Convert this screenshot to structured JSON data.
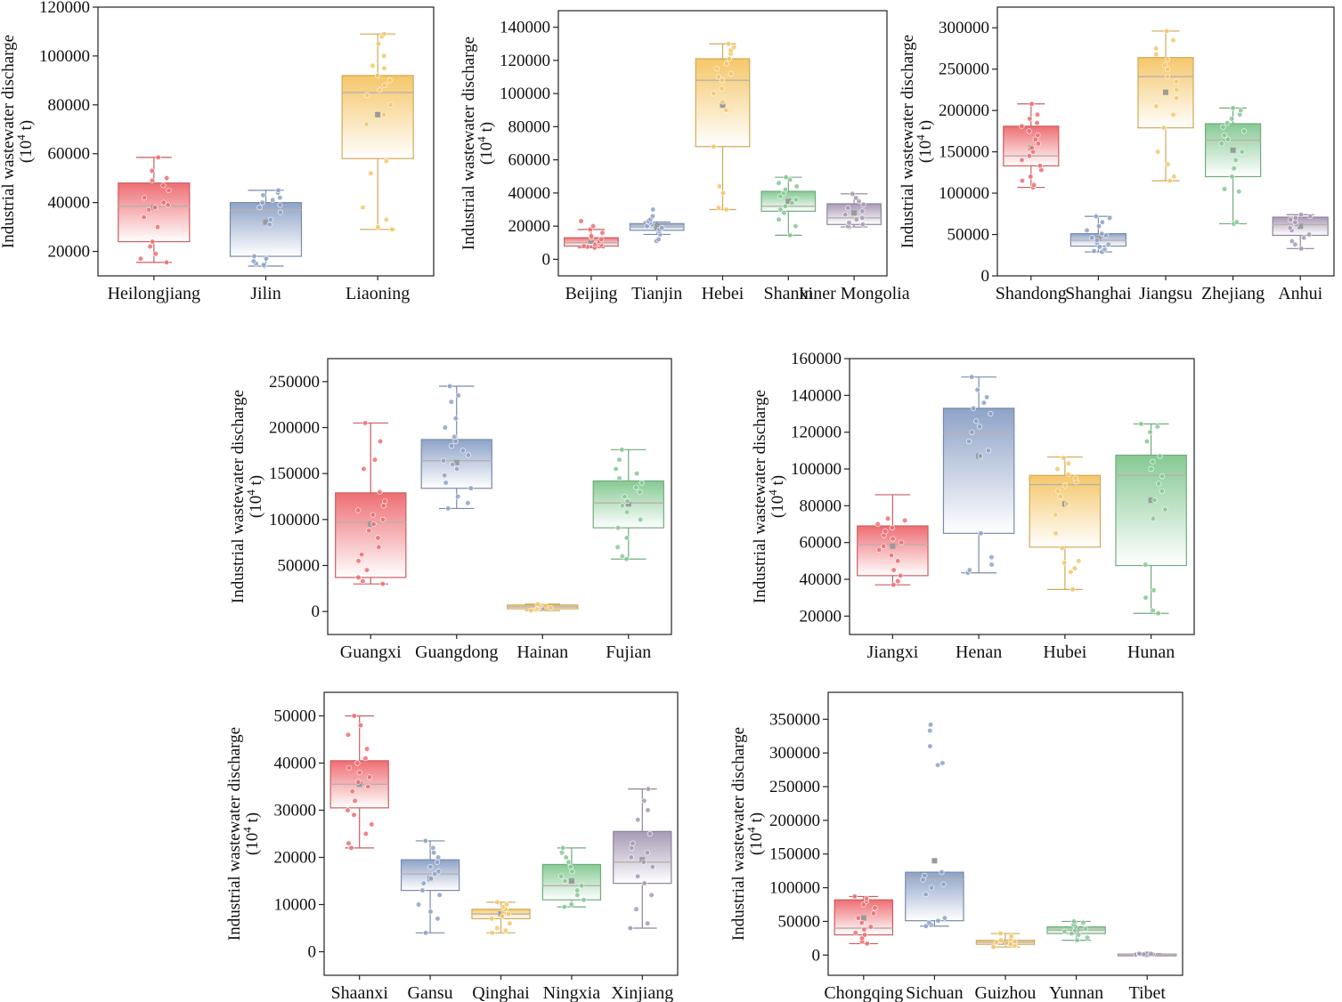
{
  "ylabel_line1": "Industrial wastewater discharge",
  "ylabel_line2_base": "(10",
  "ylabel_line2_sup": "4",
  "ylabel_line2_tail": " t)",
  "palette": [
    "#ee6e73",
    "#8ea3c8",
    "#f5c76a",
    "#86c994",
    "#a89ab5"
  ],
  "chart_data": [
    {
      "type": "box",
      "ylim": [
        10000,
        120000
      ],
      "yticks": [
        20000,
        40000,
        60000,
        80000,
        100000,
        120000
      ],
      "categories": [
        "Heilongjiang",
        "Jilin",
        "Liaoning"
      ],
      "boxes": [
        {
          "min": 15500,
          "q1": 24000,
          "median": 38500,
          "q3": 48000,
          "max": 58500,
          "mean": 38000,
          "points": [
            15500,
            17000,
            19000,
            22000,
            24000,
            30000,
            34000,
            37000,
            38000,
            39000,
            40000,
            42000,
            45000,
            47000,
            49000,
            50000,
            53000,
            58500
          ]
        },
        {
          "min": 14000,
          "q1": 18000,
          "median": 37000,
          "q3": 40000,
          "max": 45000,
          "mean": 32000,
          "points": [
            14000,
            14500,
            15000,
            16000,
            17000,
            18000,
            31000,
            33000,
            36000,
            38000,
            39000,
            40000,
            41000,
            42000,
            43000,
            44000,
            45000
          ]
        },
        {
          "min": 29000,
          "q1": 58000,
          "median": 85000,
          "q3": 92000,
          "max": 109000,
          "mean": 76000,
          "points": [
            29000,
            30000,
            33000,
            38000,
            52000,
            57000,
            72000,
            76000,
            80000,
            84000,
            86000,
            88000,
            90000,
            92000,
            95000,
            96000,
            100000,
            105000,
            108000,
            109000
          ]
        }
      ]
    },
    {
      "type": "box",
      "ylim": [
        -10000,
        150000
      ],
      "yticks": [
        0,
        20000,
        40000,
        60000,
        80000,
        100000,
        120000,
        140000
      ],
      "categories": [
        "Beijing",
        "Tianjin",
        "Hebei",
        "Shanxi",
        "Inner Mongolia"
      ],
      "boxes": [
        {
          "min": 7000,
          "q1": 8000,
          "median": 10000,
          "q3": 13000,
          "max": 18000,
          "mean": 11000,
          "points": [
            7000,
            7500,
            8000,
            8500,
            9000,
            10000,
            11000,
            12000,
            13000,
            14000,
            16000,
            18000,
            20000,
            23000
          ]
        },
        {
          "min": 15000,
          "q1": 17500,
          "median": 19500,
          "q3": 21500,
          "max": 22500,
          "mean": 19500,
          "points": [
            11000,
            12000,
            15000,
            17000,
            18000,
            19000,
            20000,
            21000,
            22000,
            23000,
            24000,
            26000,
            30000
          ]
        },
        {
          "min": 30000,
          "q1": 68000,
          "median": 108000,
          "q3": 121000,
          "max": 130000,
          "mean": 93000,
          "points": [
            30000,
            31000,
            40000,
            44000,
            68000,
            90000,
            95000,
            100000,
            103000,
            108000,
            110000,
            112000,
            115000,
            118000,
            121000,
            124000,
            126000,
            128000,
            130000
          ]
        },
        {
          "min": 14500,
          "q1": 29000,
          "median": 32000,
          "q3": 41000,
          "max": 49500,
          "mean": 35000,
          "points": [
            14500,
            20000,
            24000,
            28000,
            30000,
            32000,
            34000,
            36000,
            38000,
            40000,
            42000,
            44000,
            46000,
            48000,
            49500
          ]
        },
        {
          "min": 19500,
          "q1": 21000,
          "median": 25000,
          "q3": 33500,
          "max": 39500,
          "mean": 28000,
          "points": [
            19500,
            20000,
            21000,
            22000,
            24000,
            25000,
            27000,
            29000,
            31000,
            33000,
            35000,
            37000,
            39500
          ]
        }
      ]
    },
    {
      "type": "box",
      "ylim": [
        0,
        325000
      ],
      "yticks": [
        0,
        50000,
        100000,
        150000,
        200000,
        250000,
        300000
      ],
      "categories": [
        "Shandong",
        "Shanghai",
        "Jiangsu",
        "Zhejiang",
        "Anhui"
      ],
      "boxes": [
        {
          "min": 107000,
          "q1": 133000,
          "median": 145000,
          "q3": 181000,
          "max": 208000,
          "mean": 155000,
          "points": [
            107000,
            110000,
            115000,
            120000,
            128000,
            133000,
            140000,
            145000,
            150000,
            155000,
            160000,
            165000,
            170000,
            175000,
            181000,
            185000,
            190000,
            195000,
            208000
          ]
        },
        {
          "min": 29000,
          "q1": 36000,
          "median": 43000,
          "q3": 51000,
          "max": 72000,
          "mean": 45000,
          "points": [
            29000,
            30000,
            32000,
            35000,
            38000,
            40000,
            43000,
            46000,
            49000,
            51000,
            55000,
            60000,
            65000,
            70000,
            72000
          ]
        },
        {
          "min": 115000,
          "q1": 179000,
          "median": 241000,
          "q3": 264000,
          "max": 296000,
          "mean": 222000,
          "points": [
            115000,
            120000,
            135000,
            150000,
            179000,
            195000,
            205000,
            215000,
            225000,
            235000,
            241000,
            250000,
            255000,
            262000,
            268000,
            275000,
            285000,
            296000
          ]
        },
        {
          "min": 63000,
          "q1": 120000,
          "median": 164000,
          "q3": 184000,
          "max": 203000,
          "mean": 152000,
          "points": [
            63000,
            65000,
            102000,
            105000,
            120000,
            130000,
            140000,
            150000,
            160000,
            165000,
            170000,
            175000,
            180000,
            185000,
            190000,
            195000,
            200000,
            203000
          ]
        },
        {
          "min": 33000,
          "q1": 49000,
          "median": 62000,
          "q3": 71000,
          "max": 74000,
          "mean": 60000,
          "points": [
            33000,
            38000,
            42000,
            46000,
            50000,
            55000,
            58000,
            62000,
            65000,
            68000,
            70000,
            72000,
            74000
          ]
        }
      ]
    },
    {
      "type": "box",
      "ylim": [
        -25000,
        275000
      ],
      "yticks": [
        0,
        50000,
        100000,
        150000,
        200000,
        250000
      ],
      "categories": [
        "Guangxi",
        "Guangdong",
        "Hainan",
        "Fujian"
      ],
      "boxes": [
        {
          "min": 30000,
          "q1": 37000,
          "median": 97000,
          "q3": 129000,
          "max": 205000,
          "mean": 95000,
          "points": [
            30000,
            33000,
            37000,
            45000,
            55000,
            62000,
            70000,
            80000,
            88000,
            95000,
            100000,
            105000,
            110000,
            115000,
            120000,
            130000,
            155000,
            165000,
            185000,
            205000
          ]
        },
        {
          "min": 112000,
          "q1": 134000,
          "median": 164000,
          "q3": 187000,
          "max": 245000,
          "mean": 162000,
          "points": [
            112000,
            118000,
            125000,
            134000,
            140000,
            148000,
            155000,
            160000,
            164000,
            170000,
            175000,
            180000,
            185000,
            190000,
            200000,
            210000,
            228000,
            235000,
            245000
          ]
        },
        {
          "min": 1000,
          "q1": 3000,
          "median": 5000,
          "q3": 7000,
          "max": 8000,
          "mean": 5000,
          "points": [
            1000,
            2000,
            3000,
            4000,
            5000,
            6000,
            7000,
            8000
          ]
        },
        {
          "min": 57000,
          "q1": 91000,
          "median": 118000,
          "q3": 142000,
          "max": 176000,
          "mean": 117000,
          "points": [
            57000,
            60000,
            70000,
            80000,
            91000,
            100000,
            108000,
            115000,
            120000,
            125000,
            130000,
            135000,
            140000,
            145000,
            150000,
            155000,
            165000,
            176000
          ]
        }
      ]
    },
    {
      "type": "box",
      "ylim": [
        10000,
        160000
      ],
      "yticks": [
        20000,
        40000,
        60000,
        80000,
        100000,
        120000,
        140000,
        160000
      ],
      "categories": [
        "Jiangxi",
        "Henan",
        "Hubei",
        "Hunan"
      ],
      "boxes": [
        {
          "min": 37000,
          "q1": 42000,
          "median": 59000,
          "q3": 69000,
          "max": 86000,
          "mean": 58000,
          "points": [
            37000,
            39000,
            42000,
            45000,
            50000,
            53000,
            56000,
            58000,
            60000,
            62000,
            64000,
            66000,
            68000,
            70000,
            72000,
            73000
          ]
        },
        {
          "min": 43500,
          "q1": 65000,
          "median": 120000,
          "q3": 133000,
          "max": 150000,
          "mean": 107000,
          "points": [
            43500,
            45000,
            48000,
            52000,
            65000,
            107000,
            110000,
            115000,
            120000,
            123000,
            126000,
            130000,
            133000,
            136000,
            139000,
            143000,
            150000
          ]
        },
        {
          "min": 34500,
          "q1": 57500,
          "median": 91500,
          "q3": 96500,
          "max": 106500,
          "mean": 81000,
          "points": [
            34500,
            44000,
            46000,
            49000,
            50000,
            57000,
            65000,
            75000,
            81000,
            85000,
            88000,
            91000,
            93000,
            95000,
            97000,
            100000,
            103000,
            106000
          ]
        },
        {
          "min": 21500,
          "q1": 47500,
          "median": 96500,
          "q3": 107500,
          "max": 124500,
          "mean": 83000,
          "points": [
            21500,
            23000,
            30000,
            34000,
            48000,
            73000,
            78000,
            83000,
            88000,
            92000,
            96000,
            100000,
            104000,
            107000,
            115000,
            120000,
            123000,
            124500
          ]
        }
      ]
    },
    {
      "type": "box",
      "ylim": [
        -5000,
        55000
      ],
      "yticks": [
        0,
        10000,
        20000,
        30000,
        40000,
        50000
      ],
      "categories": [
        "Shaanxi",
        "Gansu",
        "Qinghai",
        "Ningxia",
        "Xinjiang"
      ],
      "boxes": [
        {
          "min": 22000,
          "q1": 30500,
          "median": 35500,
          "q3": 40500,
          "max": 50000,
          "mean": 35500,
          "points": [
            22000,
            23000,
            25000,
            27000,
            29000,
            30000,
            32000,
            34000,
            35000,
            36000,
            37000,
            38000,
            39000,
            40000,
            41000,
            43000,
            46000,
            48000,
            50000
          ]
        },
        {
          "min": 4000,
          "q1": 13000,
          "median": 16500,
          "q3": 19500,
          "max": 23500,
          "mean": 15500,
          "points": [
            4000,
            7000,
            8500,
            10000,
            12000,
            13000,
            14500,
            15500,
            16500,
            17000,
            18000,
            19000,
            20000,
            21000,
            22000,
            23500
          ]
        },
        {
          "min": 4000,
          "q1": 7000,
          "median": 8000,
          "q3": 9000,
          "max": 10500,
          "mean": 8000,
          "points": [
            4000,
            4500,
            5000,
            6000,
            7000,
            7500,
            8000,
            8500,
            9000,
            9500,
            10000,
            10500
          ]
        },
        {
          "min": 9500,
          "q1": 11000,
          "median": 14000,
          "q3": 18500,
          "max": 22000,
          "mean": 15000,
          "points": [
            9500,
            10000,
            11000,
            12000,
            13000,
            14000,
            15000,
            16000,
            17000,
            18000,
            19000,
            20000,
            21000,
            22000
          ]
        },
        {
          "min": 5000,
          "q1": 14500,
          "median": 19000,
          "q3": 25500,
          "max": 34500,
          "mean": 19500,
          "points": [
            5000,
            6000,
            9000,
            12000,
            14500,
            16000,
            18000,
            19000,
            20000,
            21000,
            22000,
            23000,
            25000,
            28000,
            30000,
            32000,
            34500
          ]
        }
      ]
    },
    {
      "type": "box",
      "ylim": [
        -30000,
        390000
      ],
      "yticks": [
        0,
        50000,
        100000,
        150000,
        200000,
        250000,
        300000,
        350000
      ],
      "categories": [
        "Chongqing",
        "Sichuan",
        "Guizhou",
        "Yunnan",
        "Tibet"
      ],
      "boxes": [
        {
          "min": 17000,
          "q1": 30000,
          "median": 40000,
          "q3": 82000,
          "max": 87000,
          "mean": 55000,
          "points": [
            17000,
            20000,
            25000,
            30000,
            33000,
            38000,
            42000,
            48000,
            55000,
            62000,
            70000,
            75000,
            80000,
            84000,
            87000
          ]
        },
        {
          "min": 43000,
          "q1": 51000,
          "median": 112000,
          "q3": 123000,
          "max": 123000,
          "mean": 140000,
          "points": [
            43000,
            45000,
            48000,
            51000,
            55000,
            90000,
            100000,
            105000,
            112000,
            118000,
            123000,
            282000,
            285000,
            310000,
            333000,
            342000
          ]
        },
        {
          "min": 12000,
          "q1": 16000,
          "median": 19000,
          "q3": 22000,
          "max": 32000,
          "mean": 19000,
          "points": [
            12000,
            14000,
            16000,
            18000,
            19000,
            20000,
            22000,
            24000,
            28000,
            32000
          ]
        },
        {
          "min": 22000,
          "q1": 32000,
          "median": 37000,
          "q3": 42000,
          "max": 50000,
          "mean": 37000,
          "points": [
            22000,
            26000,
            30000,
            32000,
            35000,
            37000,
            39000,
            42000,
            45000,
            48000,
            50000
          ]
        },
        {
          "min": 500,
          "q1": 800,
          "median": 1200,
          "q3": 1600,
          "max": 2000,
          "mean": 1200,
          "points": [
            500,
            800,
            1000,
            1200,
            1500,
            1800,
            2000
          ]
        }
      ]
    }
  ]
}
